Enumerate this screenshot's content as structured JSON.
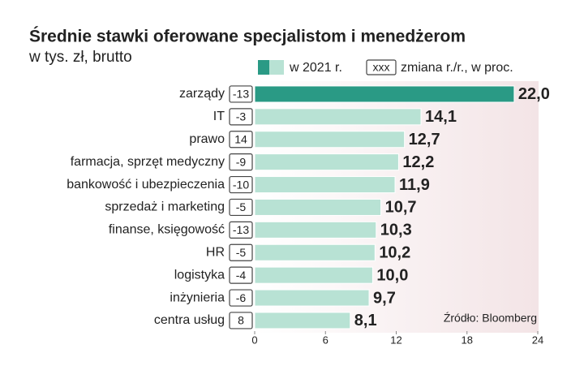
{
  "chart_data": {
    "type": "bar",
    "title": "Średnie stawki oferowane specjalistom i menedżerom",
    "subtitle": "w tys. zł, brutto",
    "categories": [
      "zarządy",
      "IT",
      "prawo",
      "farmacja, sprzęt medyczny",
      "bankowość i ubezpieczenia",
      "sprzedaż i marketing",
      "finanse, księgowość",
      "HR",
      "logistyka",
      "inżynieria",
      "centra usług"
    ],
    "series": [
      {
        "name": "w 2021 r.",
        "colors": [
          "#2a9a85",
          "#b8e2d4",
          "#b8e2d4",
          "#b8e2d4",
          "#b8e2d4",
          "#b8e2d4",
          "#b8e2d4",
          "#b8e2d4",
          "#b8e2d4",
          "#b8e2d4",
          "#b8e2d4"
        ],
        "values": [
          22.0,
          14.1,
          12.7,
          12.2,
          11.9,
          10.7,
          10.3,
          10.2,
          10.0,
          9.7,
          8.1
        ],
        "value_labels": [
          "22,0",
          "14,1",
          "12,7",
          "12,2",
          "11,9",
          "10,7",
          "10,3",
          "10,2",
          "10,0",
          "9,7",
          "8,1"
        ]
      }
    ],
    "change": {
      "name": "zmiana r./r., w proc.",
      "sample": "xxx",
      "values": [
        -13,
        -3,
        14,
        -9,
        -10,
        -5,
        -13,
        -5,
        -4,
        -6,
        8
      ]
    },
    "xlim": [
      0,
      24
    ],
    "xticks": [
      0,
      6,
      12,
      18,
      24
    ],
    "source": "Źródło: Bloomberg"
  }
}
